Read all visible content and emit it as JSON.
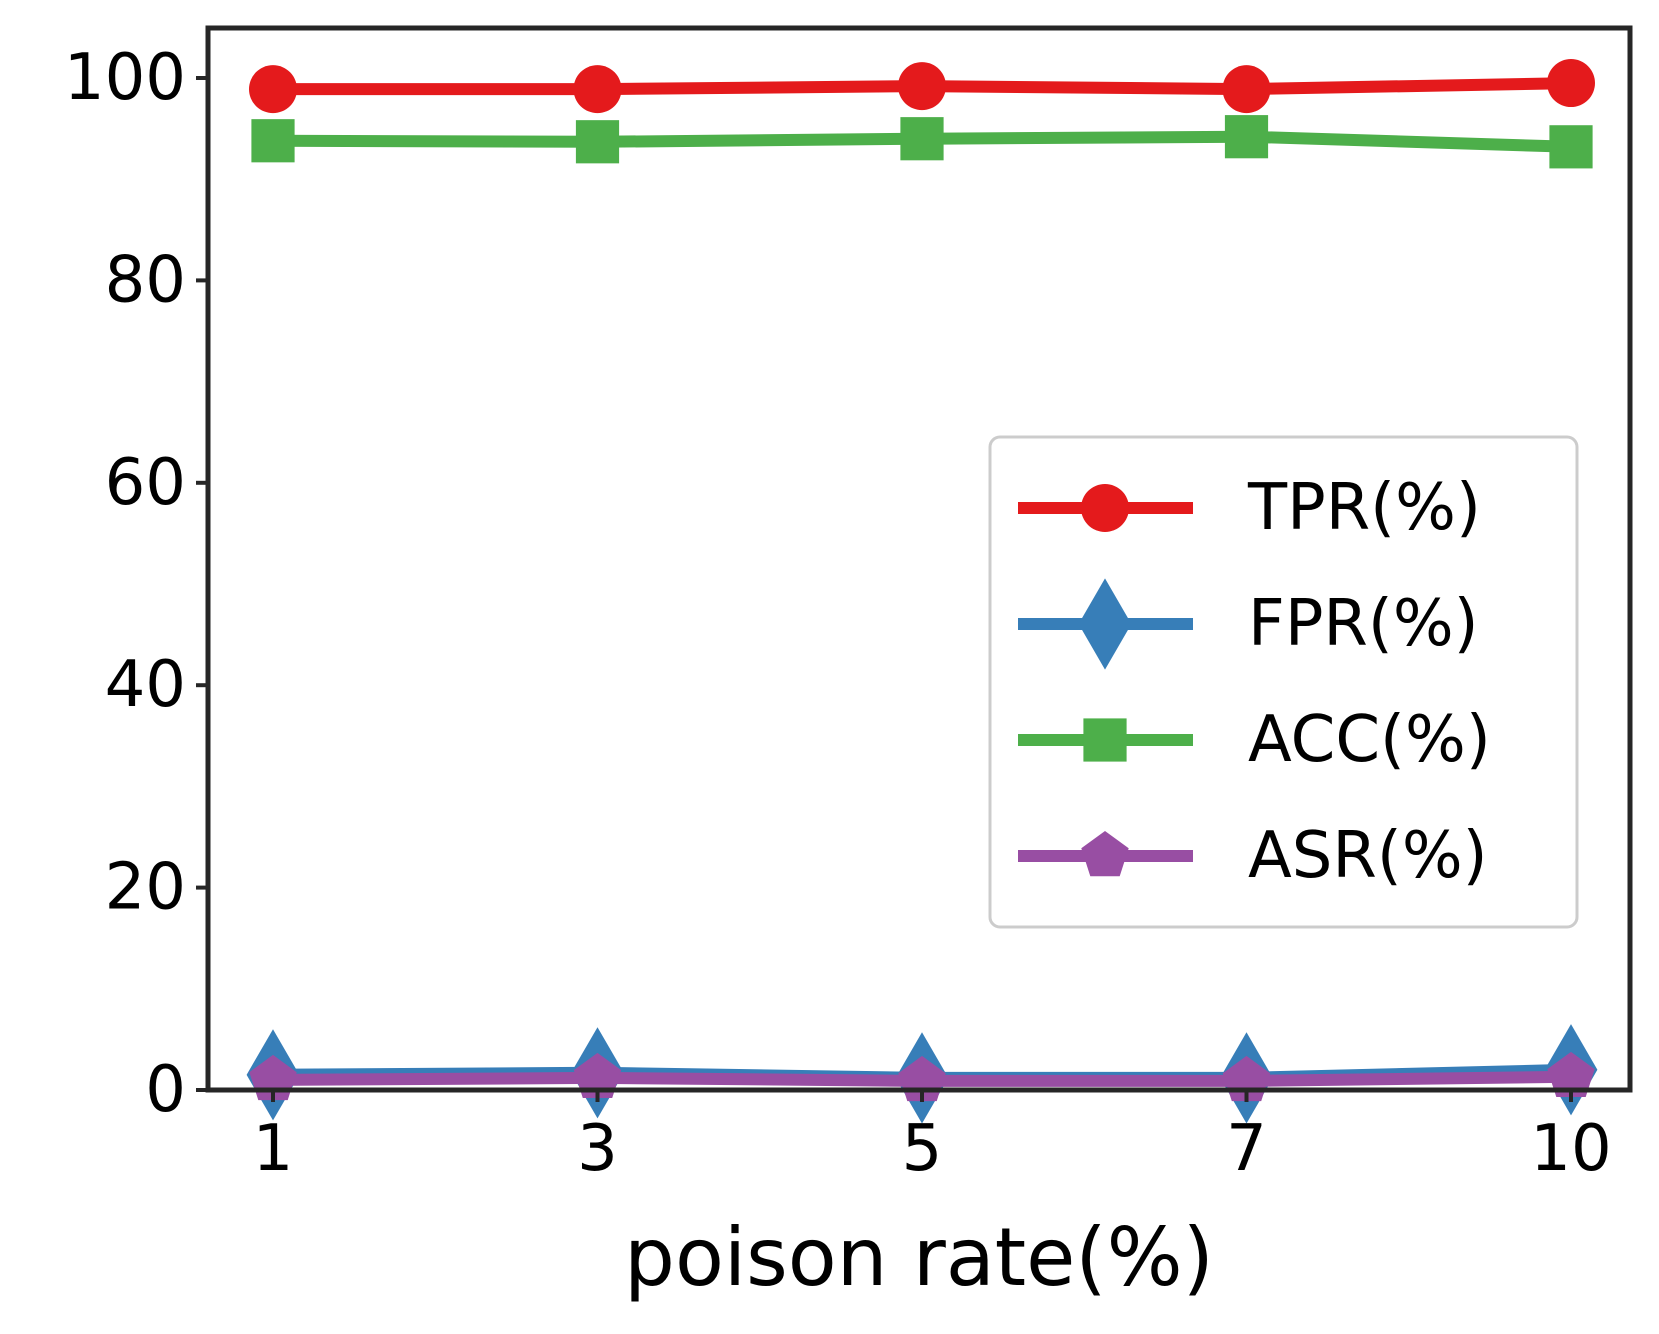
{
  "chart_data": {
    "type": "line",
    "title": "",
    "xlabel": "poison rate(%)",
    "ylabel": "",
    "categories": [
      "1",
      "3",
      "5",
      "7",
      "10"
    ],
    "ylim": [
      0,
      105
    ],
    "yticks": [
      "0",
      "20",
      "40",
      "60",
      "80",
      "100"
    ],
    "ytick_values": [
      0,
      20,
      40,
      60,
      80,
      100
    ],
    "grid": false,
    "legend_position": "center-right",
    "series": [
      {
        "name": "TPR(%)",
        "color": "#e41a1c",
        "marker": "circle",
        "values": [
          98.9,
          98.9,
          99.2,
          98.9,
          99.5
        ]
      },
      {
        "name": "FPR(%)",
        "color": "#377eb8",
        "marker": "diamond",
        "values": [
          1.5,
          1.7,
          1.2,
          1.2,
          2.0
        ]
      },
      {
        "name": "ACC(%)",
        "color": "#4daf4a",
        "marker": "square",
        "values": [
          93.8,
          93.7,
          94.0,
          94.2,
          93.2
        ]
      },
      {
        "name": "ASR(%)",
        "color": "#984ea3",
        "marker": "pentagon",
        "values": [
          1.0,
          1.2,
          0.9,
          0.9,
          1.3
        ]
      }
    ]
  }
}
